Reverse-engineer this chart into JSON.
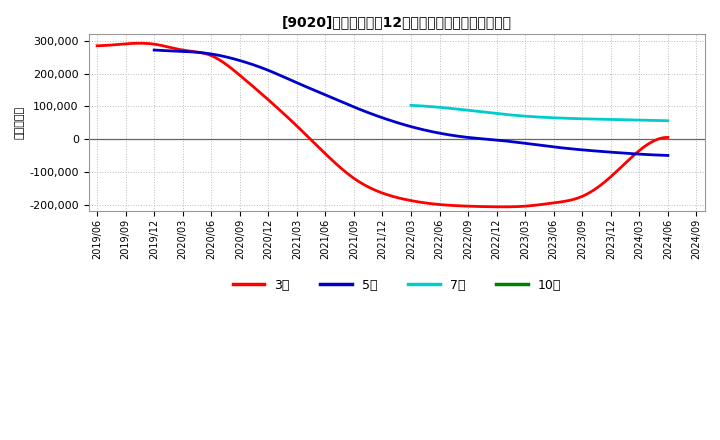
{
  "title": "[9020]　当期純利益12か月移動合計の平均値の推移",
  "ylabel": "（百万円）",
  "ylim": [
    -220000,
    320000
  ],
  "yticks": [
    -200000,
    -100000,
    0,
    100000,
    200000,
    300000
  ],
  "background_color": "#ffffff",
  "plot_bg_color": "#ffffff",
  "grid_color": "#bbbbbb",
  "series": {
    "3年": {
      "color": "#ff0000",
      "points": [
        [
          "2019/06",
          285000
        ],
        [
          "2019/09",
          291000
        ],
        [
          "2019/12",
          290000
        ],
        [
          "2020/03",
          272000
        ],
        [
          "2020/06",
          255000
        ],
        [
          "2020/09",
          195000
        ],
        [
          "2020/12",
          120000
        ],
        [
          "2021/03",
          40000
        ],
        [
          "2021/06",
          -45000
        ],
        [
          "2021/09",
          -120000
        ],
        [
          "2021/12",
          -165000
        ],
        [
          "2022/03",
          -188000
        ],
        [
          "2022/06",
          -200000
        ],
        [
          "2022/09",
          -205000
        ],
        [
          "2022/12",
          -207000
        ],
        [
          "2023/03",
          -205000
        ],
        [
          "2023/06",
          -195000
        ],
        [
          "2023/09",
          -175000
        ],
        [
          "2023/12",
          -115000
        ],
        [
          "2024/03",
          -35000
        ],
        [
          "2024/06",
          5000
        ]
      ]
    },
    "5年": {
      "color": "#0000cc",
      "points": [
        [
          "2019/12",
          272000
        ],
        [
          "2020/03",
          268000
        ],
        [
          "2020/06",
          260000
        ],
        [
          "2020/09",
          240000
        ],
        [
          "2020/12",
          210000
        ],
        [
          "2021/03",
          172000
        ],
        [
          "2021/06",
          135000
        ],
        [
          "2021/09",
          98000
        ],
        [
          "2021/12",
          65000
        ],
        [
          "2022/03",
          38000
        ],
        [
          "2022/06",
          18000
        ],
        [
          "2022/09",
          5000
        ],
        [
          "2022/12",
          -3000
        ],
        [
          "2023/03",
          -13000
        ],
        [
          "2023/06",
          -24000
        ],
        [
          "2023/09",
          -33000
        ],
        [
          "2023/12",
          -40000
        ],
        [
          "2024/03",
          -46000
        ],
        [
          "2024/06",
          -50000
        ]
      ]
    },
    "7年": {
      "color": "#00cccc",
      "points": [
        [
          "2022/03",
          103000
        ],
        [
          "2022/06",
          97000
        ],
        [
          "2022/09",
          88000
        ],
        [
          "2022/12",
          78000
        ],
        [
          "2023/03",
          70000
        ],
        [
          "2023/06",
          65000
        ],
        [
          "2023/09",
          62000
        ],
        [
          "2023/12",
          60000
        ],
        [
          "2024/03",
          58000
        ],
        [
          "2024/06",
          56000
        ]
      ]
    },
    "10年": {
      "color": "#008000",
      "points": []
    }
  },
  "xtick_labels": [
    "2019/06",
    "2019/09",
    "2019/12",
    "2020/03",
    "2020/06",
    "2020/09",
    "2020/12",
    "2021/03",
    "2021/06",
    "2021/09",
    "2021/12",
    "2022/03",
    "2022/06",
    "2022/09",
    "2022/12",
    "2023/03",
    "2023/06",
    "2023/09",
    "2023/12",
    "2024/03",
    "2024/06",
    "2024/09"
  ],
  "legend_labels": [
    "3年",
    "5年",
    "7年",
    "10年"
  ],
  "legend_colors": [
    "#ff0000",
    "#0000cc",
    "#00cccc",
    "#008000"
  ]
}
